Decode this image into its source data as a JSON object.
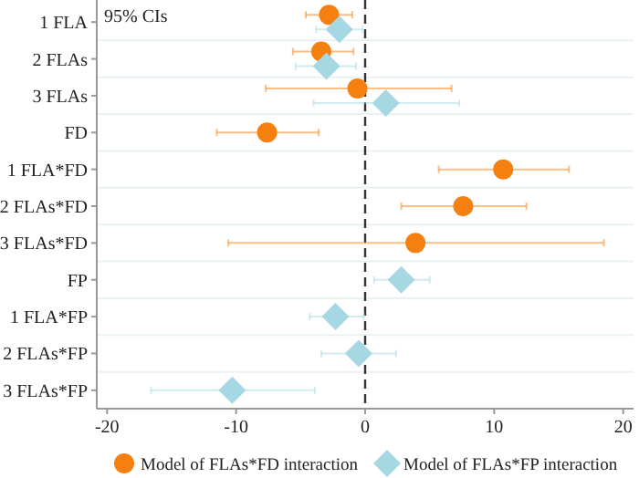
{
  "chart_data": {
    "type": "scatter",
    "orientation": "horizontal",
    "categories": [
      "1 FLA",
      "2 FLAs",
      "3 FLAs",
      "FD",
      "1 FLA*FD",
      "2 FLAs*FD",
      "3 FLAs*FD",
      "FP",
      "1 FLA*FP",
      "2 FLAs*FP",
      "3 FLAs*FP"
    ],
    "series": [
      {
        "name": "Model of FLAs*FD interaction",
        "color": "#f57f0f",
        "marker": "circle",
        "values": [
          -2.8,
          -3.4,
          -0.6,
          -7.6,
          10.7,
          7.6,
          3.9,
          null,
          null,
          null,
          null
        ],
        "errors": [
          [
            -4.6,
            -1.0
          ],
          [
            -5.6,
            -0.9
          ],
          [
            -7.7,
            6.7
          ],
          [
            -11.5,
            -3.6
          ],
          [
            5.7,
            15.8
          ],
          [
            2.8,
            12.5
          ],
          [
            -10.6,
            18.5
          ],
          null,
          null,
          null,
          null
        ]
      },
      {
        "name": "Model of FLAs*FP interaction",
        "color": "#a6d8e4",
        "marker": "diamond",
        "values": [
          -2.0,
          -3.0,
          1.6,
          null,
          null,
          null,
          null,
          2.8,
          -2.3,
          -0.5,
          -10.3
        ],
        "errors": [
          [
            -3.8,
            -0.2
          ],
          [
            -5.4,
            -0.7
          ],
          [
            -4.0,
            7.3
          ],
          null,
          null,
          null,
          null,
          [
            0.7,
            5.0
          ],
          [
            -4.3,
            -0.1
          ],
          [
            -3.4,
            2.4
          ],
          [
            -16.6,
            -3.9
          ]
        ]
      }
    ],
    "xlim": [
      -20.8,
      20.8
    ],
    "xticks": [
      -20,
      -10,
      0,
      10,
      20
    ],
    "ref_lines": [
      {
        "axis": "x",
        "value": 0,
        "color": "#333333",
        "line_style": "dashed"
      }
    ],
    "annotations": [
      "95% CIs"
    ],
    "grid": "y",
    "legend": "bottom"
  }
}
